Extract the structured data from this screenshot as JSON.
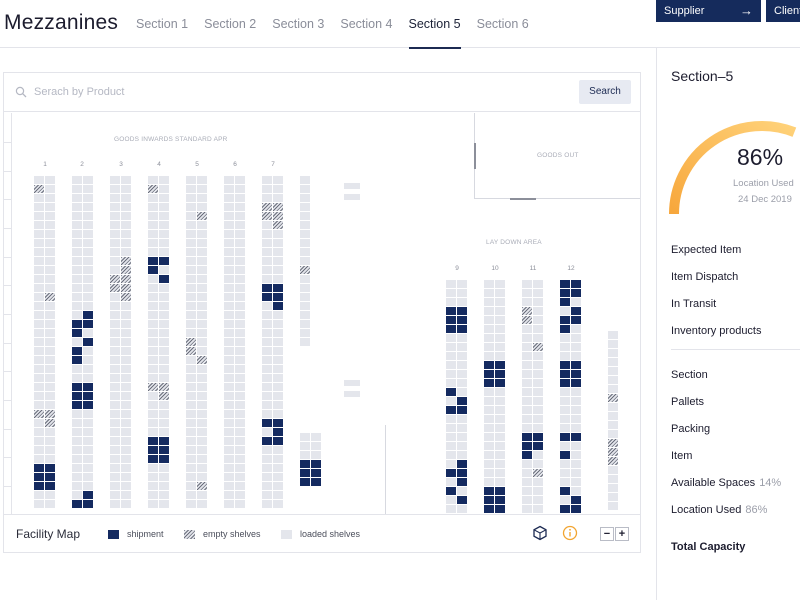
{
  "app": {
    "title": "Mezzanines"
  },
  "tabs": [
    "Section 1",
    "Section 2",
    "Section 3",
    "Section 4",
    "Section 5",
    "Section 6"
  ],
  "active_tab": "Section 5",
  "header_buttons": {
    "supplier": "Supplier",
    "clients": "Clients"
  },
  "search": {
    "placeholder": "Serach by Product",
    "button": "Search"
  },
  "map": {
    "goods_inwards_label": "GOODS INWARDS STANDARD APR",
    "goods_out_label": "GOODS OUT",
    "lay_down_label": "LAY DOWN AREA",
    "rack_labels": [
      "1",
      "2",
      "3",
      "4",
      "5",
      "6",
      "7",
      "9",
      "10",
      "11",
      "12"
    ]
  },
  "legend": {
    "title": "Facility Map",
    "shipment": "shipment",
    "empty": "empty shelves",
    "loaded": "loaded shelves"
  },
  "colors": {
    "shipment": "#142a60",
    "loaded": "#e4e6ec",
    "accent_start": "#f7a73c",
    "accent_end": "#ffd27a"
  },
  "icons": [
    "search-icon",
    "arrow-right-icon",
    "cube-icon",
    "info-icon",
    "zoom-out-icon",
    "zoom-in-icon"
  ],
  "section_panel": {
    "title": "Section–5",
    "location_used_percent": "86%",
    "location_used_fraction": 0.86,
    "location_used_label": "Location Used",
    "date": "24 Dec 2019",
    "items": [
      "Expected Item",
      "Item Dispatch",
      "In Transit",
      "Inventory products"
    ],
    "stats": [
      {
        "label": "Section",
        "value": ""
      },
      {
        "label": "Pallets",
        "value": ""
      },
      {
        "label": "Packing",
        "value": ""
      },
      {
        "label": "Item",
        "value": ""
      },
      {
        "label": "Available Spaces",
        "value": "14%"
      },
      {
        "label": "Location Used",
        "value": "86%"
      }
    ],
    "total_label": "Total Capacity"
  }
}
